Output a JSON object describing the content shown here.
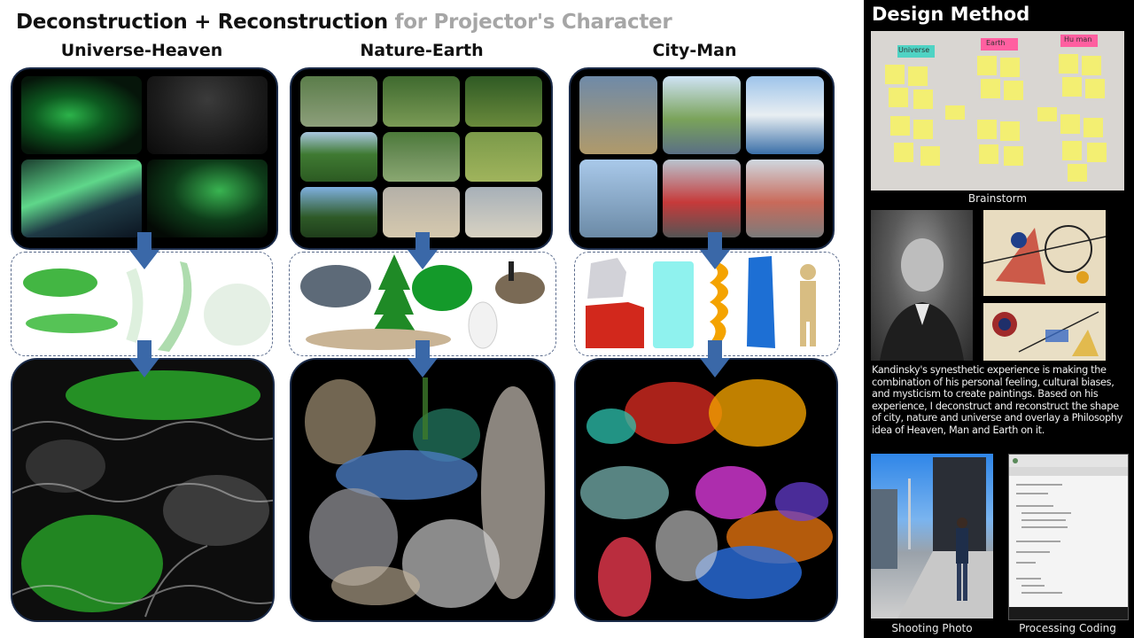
{
  "title": {
    "main": "Deconstruction + Reconstruction",
    "sub": "for Projector's Character"
  },
  "columns": [
    {
      "heading": "Universe-Heaven"
    },
    {
      "heading": "Nature-Earth"
    },
    {
      "heading": "City-Man"
    }
  ],
  "sidebar": {
    "title": "Design Method",
    "brainstorm_caption": "Brainstorm",
    "sticky_labels": [
      "Universe",
      "Earth",
      "Hu man"
    ],
    "description": "Kandinsky's synesthetic experience is making the combination of his personal feeling, cultural biases, and mysticism to create paintings. Based on his experience, I deconstruct and reconstruct the shape of city, nature and universe and overlay a Philosophy idea of Heaven, Man and Earth on it.",
    "shooting_caption": "Shooting Photo",
    "coding_caption": "Processing Coding"
  },
  "colors": {
    "accent_arrow": "#3a68a8",
    "panel_border": "#1c2c4a",
    "sidebar_bg": "#000000"
  }
}
